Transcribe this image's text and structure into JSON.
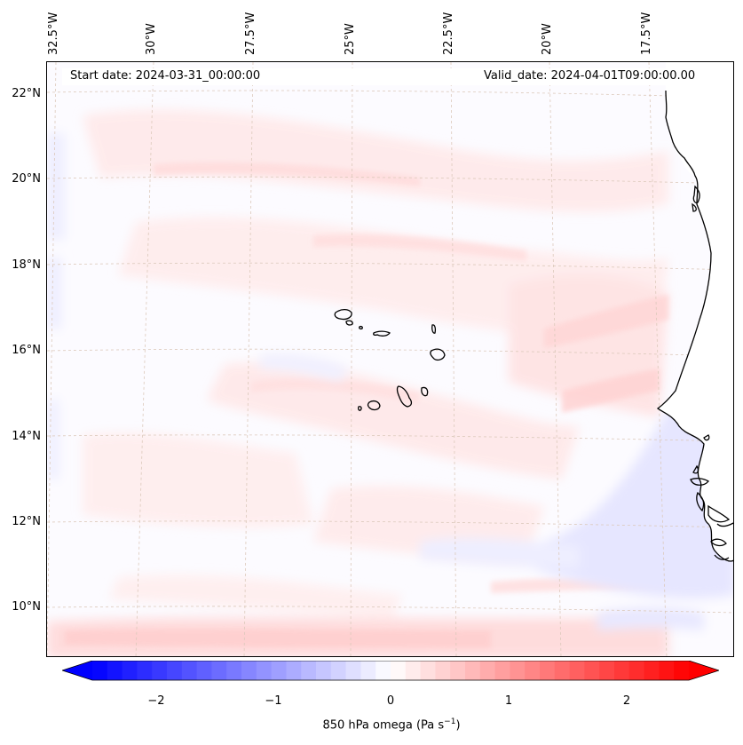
{
  "map": {
    "start_date": "Start date: 2024-03-31_00:00:00",
    "valid_date": "Valid_date: 2024-04-01T09:00:00.00",
    "lon_labels": [
      "32.5°W",
      "30°W",
      "27.5°W",
      "25°W",
      "22.5°W",
      "20°W",
      "17.5°W"
    ],
    "lat_labels": [
      "22°N",
      "20°N",
      "18°N",
      "16°N",
      "14°N",
      "12°N",
      "10°N"
    ],
    "features": [
      "Cape Verde islands",
      "West African coastline"
    ],
    "land_color": "#ffffff",
    "coast_color": "#000000",
    "gridline_color": "#d9c7b8"
  },
  "colorbar": {
    "title_main": "850 hPa omega (Pa s",
    "title_sup": "−1",
    "title_end": ")",
    "ticks": [
      "−2",
      "−1",
      "0",
      "1",
      "2"
    ],
    "range": [
      -2.75,
      2.75
    ],
    "colormap": "bwr",
    "extend": "both",
    "low_color": "#0000ff",
    "mid_color": "#ffffff",
    "high_color": "#ff0000"
  }
}
